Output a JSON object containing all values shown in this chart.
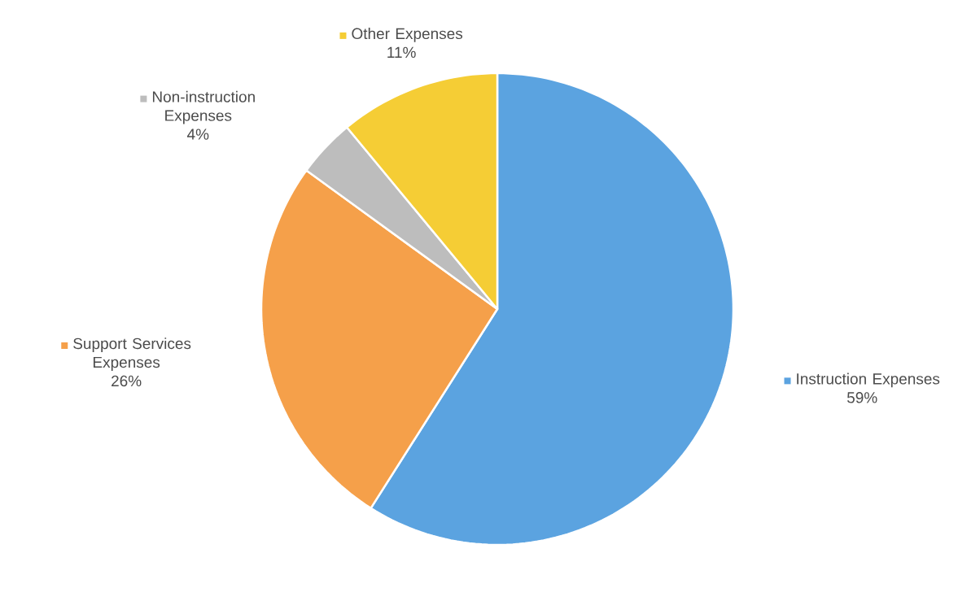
{
  "chart_data": {
    "type": "pie",
    "categories": [
      "Instruction Expenses",
      "Support Services Expenses",
      "Non-instruction Expenses",
      "Other Expenses"
    ],
    "values": [
      59,
      26,
      4,
      11
    ],
    "value_labels": [
      "59%",
      "26%",
      "4%",
      "11%"
    ],
    "colors": [
      "#5ba3e0",
      "#f5a04a",
      "#bdbdbd",
      "#f5cd35"
    ],
    "legend": true
  }
}
